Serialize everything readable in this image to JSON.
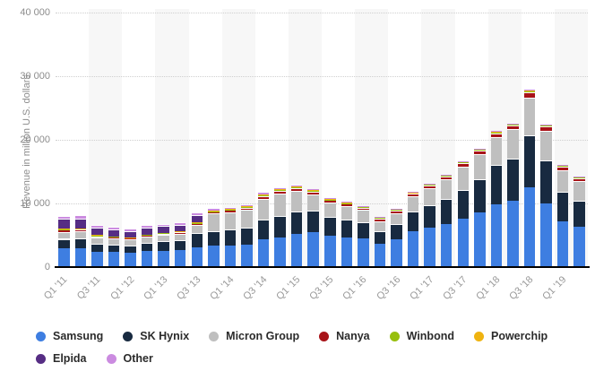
{
  "chart_data": {
    "type": "bar",
    "stacked": true,
    "title": "",
    "ylabel": "Revenue in million U.S. dollars",
    "xlabel": "",
    "ylim": [
      0,
      40000
    ],
    "yticks": [
      0,
      10000,
      20000,
      30000,
      40000
    ],
    "ytick_labels": [
      "0",
      "10 000",
      "20 000",
      "30 000",
      "40 000"
    ],
    "grid": "horizontal-dotted",
    "legend_position": "bottom",
    "label_every_n_bars": 2,
    "x_tick_labels_shown": [
      "Q1 '11",
      "Q3 '11",
      "Q1 '12",
      "Q1 '13",
      "Q3 '13",
      "Q1 '14",
      "Q3 '14",
      "Q1 '15",
      "Q3 '15",
      "Q1 '16",
      "Q3 '16",
      "Q1 '17",
      "Q3 '17",
      "Q1 '18",
      "Q3 '18",
      "Q1 '19"
    ],
    "categories": [
      "Q1 '11",
      "Q2 '11",
      "Q3 '11",
      "Q4 '11",
      "Q1 '12",
      "Q2 '12",
      "Q1 '13",
      "Q2 '13",
      "Q3 '13",
      "Q4 '13",
      "Q1 '14",
      "Q2 '14",
      "Q3 '14",
      "Q4 '14",
      "Q1 '15",
      "Q2 '15",
      "Q3 '15",
      "Q4 '15",
      "Q1 '16",
      "Q2 '16",
      "Q3 '16",
      "Q4 '16",
      "Q1 '17",
      "Q2 '17",
      "Q3 '17",
      "Q4 '17",
      "Q1 '18",
      "Q2 '18",
      "Q3 '18",
      "Q4 '18",
      "Q1 '19",
      "Q2 '19"
    ],
    "series": [
      {
        "name": "Samsung",
        "color": "#3e7ee1",
        "values": [
          2990,
          3030,
          2450,
          2350,
          2250,
          2480,
          2600,
          2700,
          3100,
          3350,
          3400,
          3550,
          4300,
          4700,
          5200,
          5490,
          4950,
          4700,
          4450,
          3650,
          4350,
          5600,
          6150,
          6750,
          7550,
          8550,
          9900,
          10450,
          12550,
          10000,
          7200,
          6400
        ]
      },
      {
        "name": "SK Hynix",
        "color": "#182a40",
        "values": [
          1450,
          1480,
          1230,
          1200,
          1180,
          1320,
          1480,
          1560,
          2200,
          2300,
          2550,
          2650,
          3150,
          3400,
          3550,
          3355,
          2950,
          2750,
          2650,
          2000,
          2350,
          3150,
          3600,
          3950,
          4600,
          5200,
          6200,
          6550,
          8200,
          6750,
          4700,
          4050
        ]
      },
      {
        "name": "Micron Group",
        "color": "#bfbfbf",
        "values": [
          1120,
          1100,
          950,
          920,
          880,
          950,
          960,
          1000,
          1300,
          2750,
          2700,
          2800,
          3300,
          3450,
          3200,
          2560,
          2200,
          2100,
          1850,
          1600,
          1800,
          2350,
          2650,
          3050,
          3650,
          4050,
          4350,
          4650,
          5900,
          4700,
          3350,
          3100
        ]
      },
      {
        "name": "Nanya",
        "color": "#a81318",
        "values": [
          300,
          290,
          230,
          215,
          200,
          220,
          230,
          240,
          250,
          280,
          310,
          350,
          420,
          450,
          480,
          450,
          400,
          390,
          370,
          350,
          380,
          420,
          430,
          480,
          530,
          530,
          580,
          620,
          800,
          650,
          480,
          400
        ]
      },
      {
        "name": "Winbond",
        "color": "#97bf0d",
        "values": [
          85,
          85,
          75,
          70,
          70,
          75,
          80,
          85,
          90,
          95,
          95,
          100,
          110,
          115,
          120,
          115,
          105,
          110,
          110,
          110,
          120,
          130,
          130,
          130,
          130,
          130,
          140,
          150,
          200,
          170,
          160,
          150
        ]
      },
      {
        "name": "Powerchip",
        "color": "#efb310",
        "values": [
          130,
          120,
          95,
          85,
          80,
          85,
          70,
          70,
          75,
          80,
          85,
          90,
          100,
          105,
          110,
          80,
          70,
          70,
          60,
          60,
          65,
          70,
          70,
          70,
          70,
          70,
          70,
          70,
          80,
          70,
          60,
          55
        ]
      },
      {
        "name": "Elpida",
        "color": "#562d84",
        "values": [
          1500,
          1570,
          1130,
          1050,
          960,
          1060,
          1020,
          1010,
          1200,
          0,
          0,
          0,
          0,
          0,
          0,
          0,
          0,
          0,
          0,
          0,
          0,
          0,
          0,
          0,
          0,
          0,
          0,
          0,
          0,
          0,
          0,
          0
        ]
      },
      {
        "name": "Other",
        "color": "#cb8be0",
        "values": [
          525,
          525,
          440,
          410,
          380,
          410,
          360,
          335,
          335,
          445,
          360,
          360,
          420,
          380,
          340,
          150,
          75,
          80,
          80,
          80,
          85,
          80,
          70,
          70,
          70,
          70,
          60,
          60,
          70,
          60,
          50,
          45
        ]
      }
    ]
  }
}
